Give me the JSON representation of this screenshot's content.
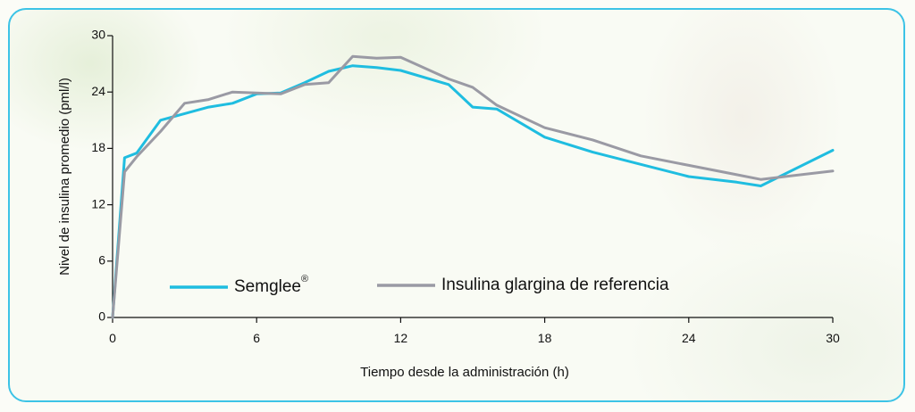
{
  "chart_data": {
    "type": "line",
    "title": "",
    "xlabel": "Tiempo desde la administración (h)",
    "ylabel": "Nivel de insulina promedio (pml/l)",
    "xlim": [
      0,
      30
    ],
    "ylim": [
      0,
      30
    ],
    "xticks": [
      0,
      6,
      12,
      18,
      24,
      30
    ],
    "yticks": [
      0,
      6,
      12,
      18,
      24,
      30
    ],
    "grid": false,
    "legend_position": "bottom-left",
    "series": [
      {
        "name": "Semglee",
        "name_mark": "®",
        "color": "#1fbde0",
        "points": [
          [
            0,
            0
          ],
          [
            0.5,
            17.0
          ],
          [
            1,
            17.5
          ],
          [
            2,
            21.0
          ],
          [
            3,
            21.7
          ],
          [
            4,
            22.4
          ],
          [
            5,
            22.8
          ],
          [
            6,
            23.8
          ],
          [
            7,
            23.9
          ],
          [
            8,
            25.0
          ],
          [
            9,
            26.2
          ],
          [
            10,
            26.8
          ],
          [
            11,
            26.6
          ],
          [
            12,
            26.3
          ],
          [
            14,
            24.8
          ],
          [
            15,
            22.4
          ],
          [
            16,
            22.2
          ],
          [
            18,
            19.2
          ],
          [
            20,
            17.6
          ],
          [
            22,
            16.3
          ],
          [
            24,
            15.0
          ],
          [
            26,
            14.4
          ],
          [
            27,
            14.0
          ],
          [
            30,
            17.8
          ]
        ]
      },
      {
        "name": "Insulina glargina de referencia",
        "color": "#9a9aa4",
        "points": [
          [
            0,
            0
          ],
          [
            0.5,
            15.5
          ],
          [
            1,
            17.1
          ],
          [
            2,
            19.8
          ],
          [
            3,
            22.8
          ],
          [
            4,
            23.2
          ],
          [
            5,
            24.0
          ],
          [
            6,
            23.9
          ],
          [
            7,
            23.8
          ],
          [
            8,
            24.8
          ],
          [
            9,
            25.0
          ],
          [
            10,
            27.8
          ],
          [
            11,
            27.6
          ],
          [
            12,
            27.7
          ],
          [
            14,
            25.4
          ],
          [
            15,
            24.5
          ],
          [
            16,
            22.6
          ],
          [
            18,
            20.2
          ],
          [
            20,
            18.9
          ],
          [
            22,
            17.2
          ],
          [
            24,
            16.2
          ],
          [
            26,
            15.2
          ],
          [
            27,
            14.7
          ],
          [
            30,
            15.6
          ]
        ]
      }
    ]
  }
}
